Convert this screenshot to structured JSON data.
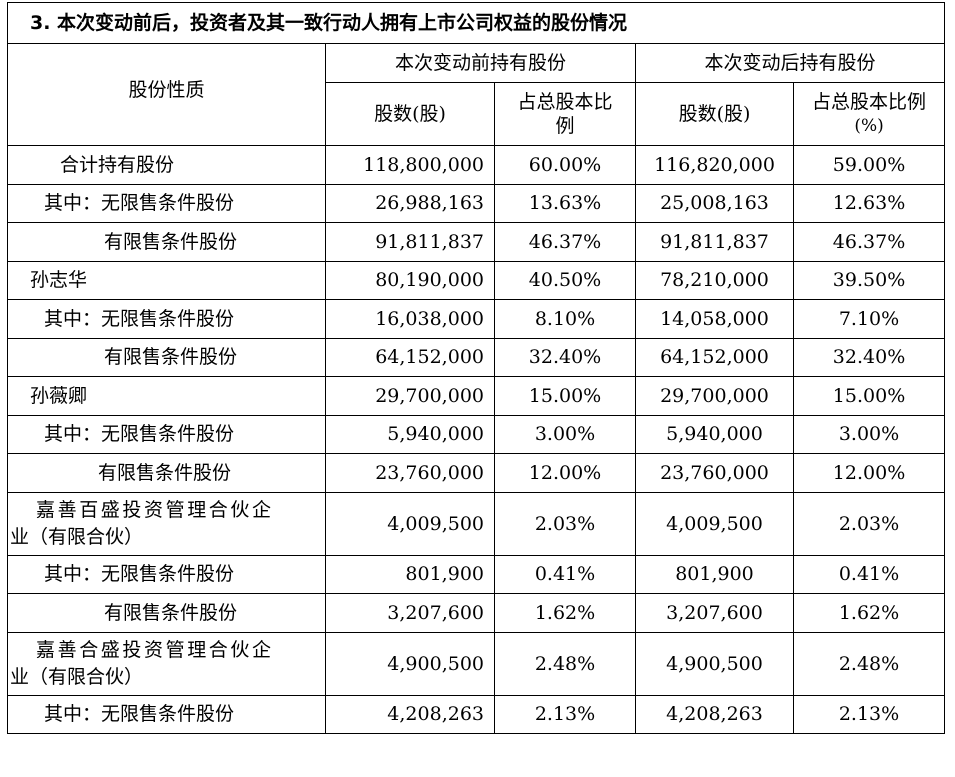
{
  "title": "3. 本次变动前后，投资者及其一致行动人拥有上市公司权益的股份情况",
  "header": {
    "share_nature": "股份性质",
    "before": "本次变动前持有股份",
    "after": "本次变动后持有股份",
    "shares_before": "股数(股)",
    "ratio_before_line1": "占总股本比",
    "ratio_before_line2": "例",
    "shares_after": "股数(股)",
    "ratio_after_line1": "占总股本比例",
    "ratio_after_line2": "(%)"
  },
  "rows": [
    {
      "label": "合计持有股份",
      "shares_before": "118,800,000",
      "ratio_before": "60.00%",
      "shares_after": "116,820,000",
      "ratio_after": "59.00%"
    },
    {
      "label": "其中：无限售条件股份",
      "shares_before": "26,988,163",
      "ratio_before": "13.63%",
      "shares_after": "25,008,163",
      "ratio_after": "12.63%"
    },
    {
      "label": "有限售条件股份",
      "shares_before": "91,811,837",
      "ratio_before": "46.37%",
      "shares_after": "91,811,837",
      "ratio_after": "46.37%"
    },
    {
      "label": "孙志华",
      "shares_before": "80,190,000",
      "ratio_before": "40.50%",
      "shares_after": "78,210,000",
      "ratio_after": "39.50%"
    },
    {
      "label": "其中：无限售条件股份",
      "shares_before": "16,038,000",
      "ratio_before": "8.10%",
      "shares_after": "14,058,000",
      "ratio_after": "7.10%"
    },
    {
      "label": "有限售条件股份",
      "shares_before": "64,152,000",
      "ratio_before": "32.40%",
      "shares_after": "64,152,000",
      "ratio_after": "32.40%"
    },
    {
      "label": "孙薇卿",
      "shares_before": "29,700,000",
      "ratio_before": "15.00%",
      "shares_after": "29,700,000",
      "ratio_after": "15.00%"
    },
    {
      "label": "其中：无限售条件股份",
      "shares_before": "5,940,000",
      "ratio_before": "3.00%",
      "shares_after": "5,940,000",
      "ratio_after": "3.00%"
    },
    {
      "label": "有限售条件股份",
      "shares_before": "23,760,000",
      "ratio_before": "12.00%",
      "shares_after": "23,760,000",
      "ratio_after": "12.00%"
    },
    {
      "label_line1": "嘉善百盛投资管理合伙企",
      "label_line2": "业（有限合伙）",
      "shares_before": "4,009,500",
      "ratio_before": "2.03%",
      "shares_after": "4,009,500",
      "ratio_after": "2.03%"
    },
    {
      "label": "其中：无限售条件股份",
      "shares_before": "801,900",
      "ratio_before": "0.41%",
      "shares_after": "801,900",
      "ratio_after": "0.41%"
    },
    {
      "label": "有限售条件股份",
      "shares_before": "3,207,600",
      "ratio_before": "1.62%",
      "shares_after": "3,207,600",
      "ratio_after": "1.62%"
    },
    {
      "label_line1": "嘉善合盛投资管理合伙企",
      "label_line2": "业（有限合伙）",
      "shares_before": "4,900,500",
      "ratio_before": "2.48%",
      "shares_after": "4,900,500",
      "ratio_after": "2.48%"
    },
    {
      "label": "其中：无限售条件股份",
      "shares_before": "4,208,263",
      "ratio_before": "2.13%",
      "shares_after": "4,208,263",
      "ratio_after": "2.13%"
    }
  ]
}
